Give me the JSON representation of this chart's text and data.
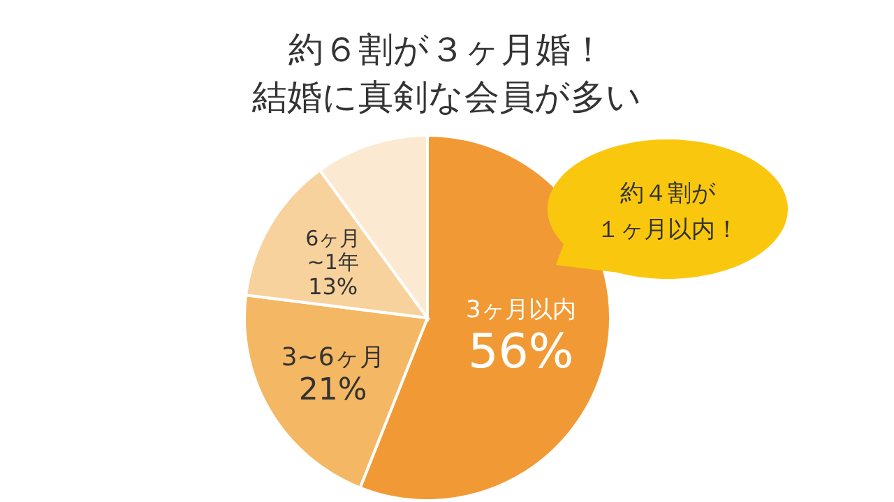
{
  "chart_data": {
    "type": "pie",
    "title": "約６割が３ヶ月婚！",
    "subtitle": "結婚に真剣な会員が多い",
    "categories": [
      "3ヶ月以内",
      "3~6ヶ月",
      "6ヶ月~1年",
      null
    ],
    "values": [
      56,
      21,
      13,
      10
    ],
    "colors": [
      "#f19a35",
      "#f4b763",
      "#f8d29c",
      "#fce9d2"
    ],
    "value_labels": [
      "56%",
      "21%",
      "13%",
      null
    ],
    "annotations": [
      "約４割が１ヶ月以内！"
    ]
  }
}
